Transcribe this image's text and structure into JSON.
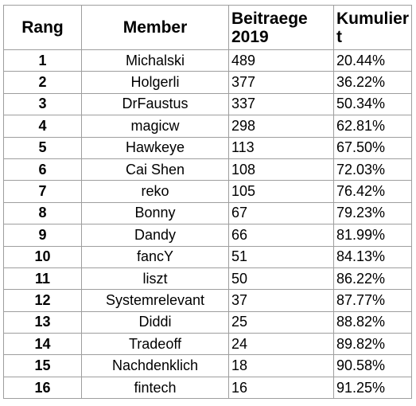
{
  "headers": {
    "rang": "Rang",
    "member": "Member",
    "beitraege": "Beitraege 2019",
    "kumuliert": "Kumuliert"
  },
  "rows": [
    {
      "rang": "1",
      "member": "Michalski",
      "beitraege": "489",
      "kumuliert": "20.44%"
    },
    {
      "rang": "2",
      "member": "Holgerli",
      "beitraege": "377",
      "kumuliert": "36.22%"
    },
    {
      "rang": "3",
      "member": "DrFaustus",
      "beitraege": "337",
      "kumuliert": "50.34%"
    },
    {
      "rang": "4",
      "member": "magicw",
      "beitraege": "298",
      "kumuliert": "62.81%"
    },
    {
      "rang": "5",
      "member": "Hawkeye",
      "beitraege": "113",
      "kumuliert": "67.50%"
    },
    {
      "rang": "6",
      "member": "Cai Shen",
      "beitraege": "108",
      "kumuliert": "72.03%"
    },
    {
      "rang": "7",
      "member": "reko",
      "beitraege": "105",
      "kumuliert": "76.42%"
    },
    {
      "rang": "8",
      "member": "Bonny",
      "beitraege": "67",
      "kumuliert": "79.23%"
    },
    {
      "rang": "9",
      "member": "Dandy",
      "beitraege": "66",
      "kumuliert": "81.99%"
    },
    {
      "rang": "10",
      "member": "fancY",
      "beitraege": "51",
      "kumuliert": "84.13%"
    },
    {
      "rang": "11",
      "member": "liszt",
      "beitraege": "50",
      "kumuliert": "86.22%"
    },
    {
      "rang": "12",
      "member": "Systemrelevant",
      "beitraege": "37",
      "kumuliert": "87.77%"
    },
    {
      "rang": "13",
      "member": "Diddi",
      "beitraege": "25",
      "kumuliert": "88.82%"
    },
    {
      "rang": "14",
      "member": "Tradeoff",
      "beitraege": "24",
      "kumuliert": "89.82%"
    },
    {
      "rang": "15",
      "member": "Nachdenklich",
      "beitraege": "18",
      "kumuliert": "90.58%"
    },
    {
      "rang": "16",
      "member": "fintech",
      "beitraege": "16",
      "kumuliert": "91.25%"
    }
  ]
}
